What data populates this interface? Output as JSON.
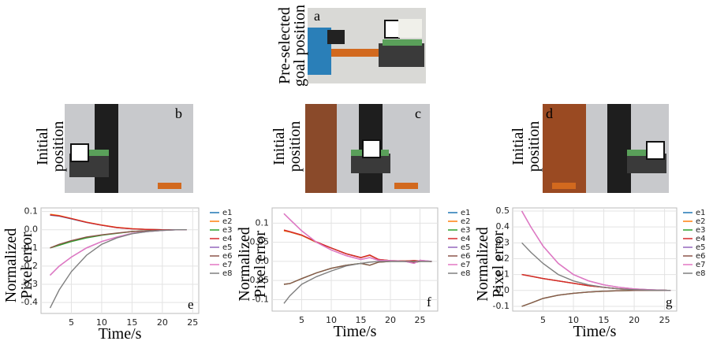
{
  "panels": [
    {
      "label": "a",
      "caption": [
        "Pre-selected",
        "goal position"
      ]
    },
    {
      "label": "b",
      "caption": [
        "Initial",
        "position"
      ]
    },
    {
      "label": "c",
      "caption": [
        "Initial",
        "position"
      ]
    },
    {
      "label": "d",
      "caption": [
        "Initial",
        "position"
      ]
    }
  ],
  "chart_data": [
    {
      "type": "line",
      "label": "e",
      "xlabel": "Time/s",
      "ylabel": [
        "Normalized",
        "Pixel error"
      ],
      "grid": true,
      "xlim": [
        0,
        26
      ],
      "ylim": [
        -0.46,
        0.12
      ],
      "xticks": [
        5,
        10,
        15,
        20,
        25
      ],
      "yticks": [
        0.1,
        {
          "value": 0,
          "label": "0.0"
        },
        -0.1,
        -0.2,
        -0.3,
        -0.4
      ],
      "x": [
        1.5,
        3,
        5,
        7.5,
        10,
        12.5,
        15,
        17.5,
        20,
        22.5,
        24
      ],
      "series": [
        {
          "name": "e1",
          "color": "#1f77b4",
          "values": [
            0.08,
            0.075,
            0.06,
            0.04,
            0.025,
            0.012,
            0.005,
            0.002,
            0,
            0,
            0
          ]
        },
        {
          "name": "e2",
          "color": "#ff7f0e",
          "values": [
            0.085,
            0.078,
            0.062,
            0.042,
            0.026,
            0.013,
            0.006,
            0.002,
            0,
            0,
            0
          ]
        },
        {
          "name": "e3",
          "color": "#2ca02c",
          "values": [
            -0.1,
            -0.085,
            -0.065,
            -0.045,
            -0.03,
            -0.02,
            -0.01,
            -0.005,
            -0.002,
            0,
            0
          ]
        },
        {
          "name": "e4",
          "color": "#d62728",
          "values": [
            0.082,
            0.076,
            0.061,
            0.041,
            0.025,
            0.012,
            0.005,
            0.002,
            0,
            0,
            0
          ]
        },
        {
          "name": "e5",
          "color": "#9467bd",
          "values": [
            -0.25,
            -0.2,
            -0.15,
            -0.1,
            -0.065,
            -0.04,
            -0.02,
            -0.01,
            -0.004,
            0,
            0
          ]
        },
        {
          "name": "e6",
          "color": "#8c564b",
          "values": [
            -0.1,
            -0.08,
            -0.06,
            -0.04,
            -0.028,
            -0.018,
            -0.01,
            -0.005,
            -0.002,
            0,
            0
          ]
        },
        {
          "name": "e7",
          "color": "#e377c2",
          "values": [
            -0.25,
            -0.2,
            -0.15,
            -0.1,
            -0.065,
            -0.04,
            -0.02,
            -0.01,
            -0.004,
            0,
            0
          ]
        },
        {
          "name": "e8",
          "color": "#7f7f7f",
          "values": [
            -0.43,
            -0.33,
            -0.23,
            -0.14,
            -0.08,
            -0.045,
            -0.022,
            -0.01,
            -0.004,
            0,
            0
          ]
        }
      ]
    },
    {
      "type": "line",
      "label": "f",
      "xlabel": "Time/s",
      "ylabel": [
        "Normalized",
        "Pixel error"
      ],
      "grid": true,
      "xlim": [
        0,
        28
      ],
      "ylim": [
        -0.13,
        0.14
      ],
      "xticks": [
        5,
        10,
        15,
        20,
        25
      ],
      "yticks": [
        0.1,
        0.05,
        {
          "value": 0,
          "label": "0.0"
        },
        -0.05,
        -0.1
      ],
      "x": [
        2,
        3,
        5,
        7.5,
        10,
        12.5,
        15,
        16.5,
        18,
        20,
        22.5,
        24,
        25,
        27
      ],
      "series": [
        {
          "name": "e1",
          "color": "#1f77b4",
          "values": [
            0.08,
            0.077,
            0.068,
            0.05,
            0.035,
            0.02,
            0.01,
            0.016,
            0.005,
            0.002,
            0.001,
            0.002,
            0.001,
            0
          ]
        },
        {
          "name": "e2",
          "color": "#ff7f0e",
          "values": [
            0.08,
            0.077,
            0.068,
            0.05,
            0.035,
            0.02,
            0.01,
            0.016,
            0.005,
            0.002,
            0.001,
            0.002,
            0.001,
            0
          ]
        },
        {
          "name": "e3",
          "color": "#2ca02c",
          "values": [
            -0.06,
            -0.058,
            -0.045,
            -0.03,
            -0.018,
            -0.01,
            -0.005,
            -0.01,
            -0.002,
            0,
            0,
            -0.003,
            0,
            0
          ]
        },
        {
          "name": "e4",
          "color": "#d62728",
          "values": [
            0.082,
            0.078,
            0.069,
            0.051,
            0.035,
            0.02,
            0.01,
            0.017,
            0.005,
            0.002,
            0.001,
            0.002,
            0.001,
            0
          ]
        },
        {
          "name": "e5",
          "color": "#9467bd",
          "values": [
            0.125,
            0.11,
            0.08,
            0.05,
            0.03,
            0.015,
            0.005,
            0.01,
            0.003,
            0.002,
            0,
            -0.005,
            0.003,
            0
          ]
        },
        {
          "name": "e6",
          "color": "#8c564b",
          "values": [
            -0.06,
            -0.058,
            -0.045,
            -0.03,
            -0.018,
            -0.01,
            -0.005,
            -0.01,
            -0.002,
            0,
            0,
            -0.003,
            0,
            0
          ]
        },
        {
          "name": "e7",
          "color": "#e377c2",
          "values": [
            0.125,
            0.11,
            0.08,
            0.05,
            0.03,
            0.015,
            0.005,
            0.01,
            0.003,
            0.002,
            0,
            -0.005,
            0.003,
            0
          ]
        },
        {
          "name": "e8",
          "color": "#7f7f7f",
          "values": [
            -0.11,
            -0.09,
            -0.06,
            -0.04,
            -0.025,
            -0.012,
            -0.005,
            -0.002,
            0,
            0,
            0,
            0,
            0,
            0
          ]
        }
      ]
    },
    {
      "type": "line",
      "label": "g",
      "xlabel": "Time/s",
      "ylabel": [
        "Normalized",
        "Pixel error"
      ],
      "grid": true,
      "xlim": [
        0,
        27
      ],
      "ylim": [
        -0.13,
        0.52
      ],
      "xticks": [
        5,
        10,
        15,
        20,
        25
      ],
      "yticks": [
        0.5,
        0.4,
        0.3,
        0.2,
        0.1,
        {
          "value": 0,
          "label": "0.0"
        },
        -0.1
      ],
      "x": [
        1.5,
        3,
        5,
        7.5,
        10,
        12.5,
        15,
        17.5,
        20,
        22.5,
        25,
        26
      ],
      "series": [
        {
          "name": "e1",
          "color": "#1f77b4",
          "values": [
            0.1,
            0.09,
            0.075,
            0.06,
            0.045,
            0.03,
            0.02,
            0.01,
            0.005,
            0.002,
            0.001,
            0
          ]
        },
        {
          "name": "e2",
          "color": "#ff7f0e",
          "values": [
            0.1,
            0.09,
            0.075,
            0.06,
            0.045,
            0.03,
            0.02,
            0.01,
            0.005,
            0.002,
            0.001,
            0
          ]
        },
        {
          "name": "e3",
          "color": "#2ca02c",
          "values": [
            -0.1,
            -0.08,
            -0.05,
            -0.03,
            -0.018,
            -0.01,
            -0.005,
            -0.002,
            0,
            0,
            0,
            0
          ]
        },
        {
          "name": "e4",
          "color": "#d62728",
          "values": [
            0.1,
            0.09,
            0.075,
            0.06,
            0.045,
            0.03,
            0.02,
            0.01,
            0.005,
            0.002,
            0.001,
            0
          ]
        },
        {
          "name": "e5",
          "color": "#9467bd",
          "values": [
            0.5,
            0.4,
            0.28,
            0.17,
            0.1,
            0.06,
            0.035,
            0.02,
            0.01,
            0.005,
            0.001,
            0
          ]
        },
        {
          "name": "e6",
          "color": "#8c564b",
          "values": [
            -0.1,
            -0.08,
            -0.05,
            -0.03,
            -0.018,
            -0.01,
            -0.005,
            -0.002,
            0,
            0,
            0,
            0
          ]
        },
        {
          "name": "e7",
          "color": "#e377c2",
          "values": [
            0.5,
            0.4,
            0.28,
            0.17,
            0.1,
            0.06,
            0.035,
            0.02,
            0.01,
            0.005,
            0.001,
            0
          ]
        },
        {
          "name": "e8",
          "color": "#7f7f7f",
          "values": [
            0.3,
            0.24,
            0.17,
            0.1,
            0.06,
            0.035,
            0.02,
            0.01,
            0.005,
            0.002,
            0.001,
            0
          ]
        }
      ]
    }
  ]
}
